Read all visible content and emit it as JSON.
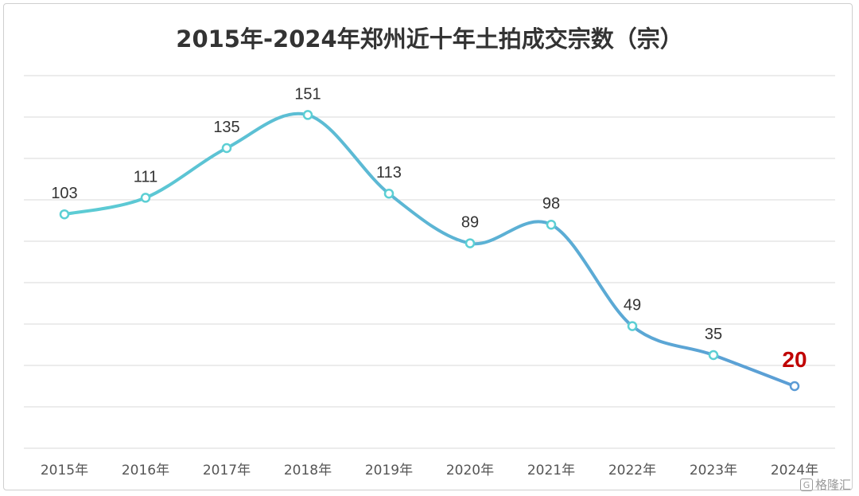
{
  "title": "2015年-2024年郑州近十年土拍成交宗数（宗）",
  "watermark": "格隆汇",
  "colors": {
    "line_start": "#5ccfd4",
    "line_end": "#5b9bd5",
    "highlight_label": "#c00000",
    "grid": "#d9d9d9",
    "text": "#333333"
  },
  "chart_data": {
    "type": "line",
    "title": "2015年-2024年郑州近十年土拍成交宗数（宗）",
    "categories": [
      "2015年",
      "2016年",
      "2017年",
      "2018年",
      "2019年",
      "2020年",
      "2021年",
      "2022年",
      "2023年",
      "2024年"
    ],
    "series": [
      {
        "values": [
          103,
          111,
          135,
          151,
          113,
          89,
          98,
          49,
          35,
          20
        ]
      }
    ],
    "ylim": [
      -10,
      170
    ],
    "smooth": true,
    "grid": true,
    "legend": "none",
    "data_labels": true,
    "highlight_last": true
  }
}
